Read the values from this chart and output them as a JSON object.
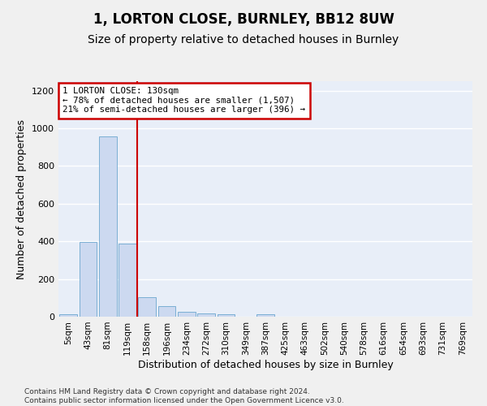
{
  "title1": "1, LORTON CLOSE, BURNLEY, BB12 8UW",
  "title2": "Size of property relative to detached houses in Burnley",
  "xlabel": "Distribution of detached houses by size in Burnley",
  "ylabel": "Number of detached properties",
  "categories": [
    "5sqm",
    "43sqm",
    "81sqm",
    "119sqm",
    "158sqm",
    "196sqm",
    "234sqm",
    "272sqm",
    "310sqm",
    "349sqm",
    "387sqm",
    "425sqm",
    "463sqm",
    "502sqm",
    "540sqm",
    "578sqm",
    "616sqm",
    "654sqm",
    "693sqm",
    "731sqm",
    "769sqm"
  ],
  "values": [
    15,
    395,
    955,
    390,
    105,
    55,
    25,
    18,
    13,
    0,
    14,
    0,
    0,
    0,
    0,
    0,
    0,
    0,
    0,
    0,
    0
  ],
  "bar_color": "#ccd9f0",
  "bar_edge_color": "#7bafd4",
  "annotation_title": "1 LORTON CLOSE: 130sqm",
  "annotation_line1": "← 78% of detached houses are smaller (1,507)",
  "annotation_line2": "21% of semi-detached houses are larger (396) →",
  "annotation_box_color": "#ffffff",
  "annotation_box_edge": "#cc0000",
  "vline_color": "#cc0000",
  "vline_x_pos": 3.5,
  "ylim": [
    0,
    1250
  ],
  "yticks": [
    0,
    200,
    400,
    600,
    800,
    1000,
    1200
  ],
  "footer_line1": "Contains HM Land Registry data © Crown copyright and database right 2024.",
  "footer_line2": "Contains public sector information licensed under the Open Government Licence v3.0.",
  "bg_color": "#e8eef8",
  "grid_color": "#ffffff",
  "title1_fontsize": 12,
  "title2_fontsize": 10,
  "tick_fontsize": 7.5,
  "ylabel_fontsize": 9,
  "xlabel_fontsize": 9,
  "footer_fontsize": 6.5
}
